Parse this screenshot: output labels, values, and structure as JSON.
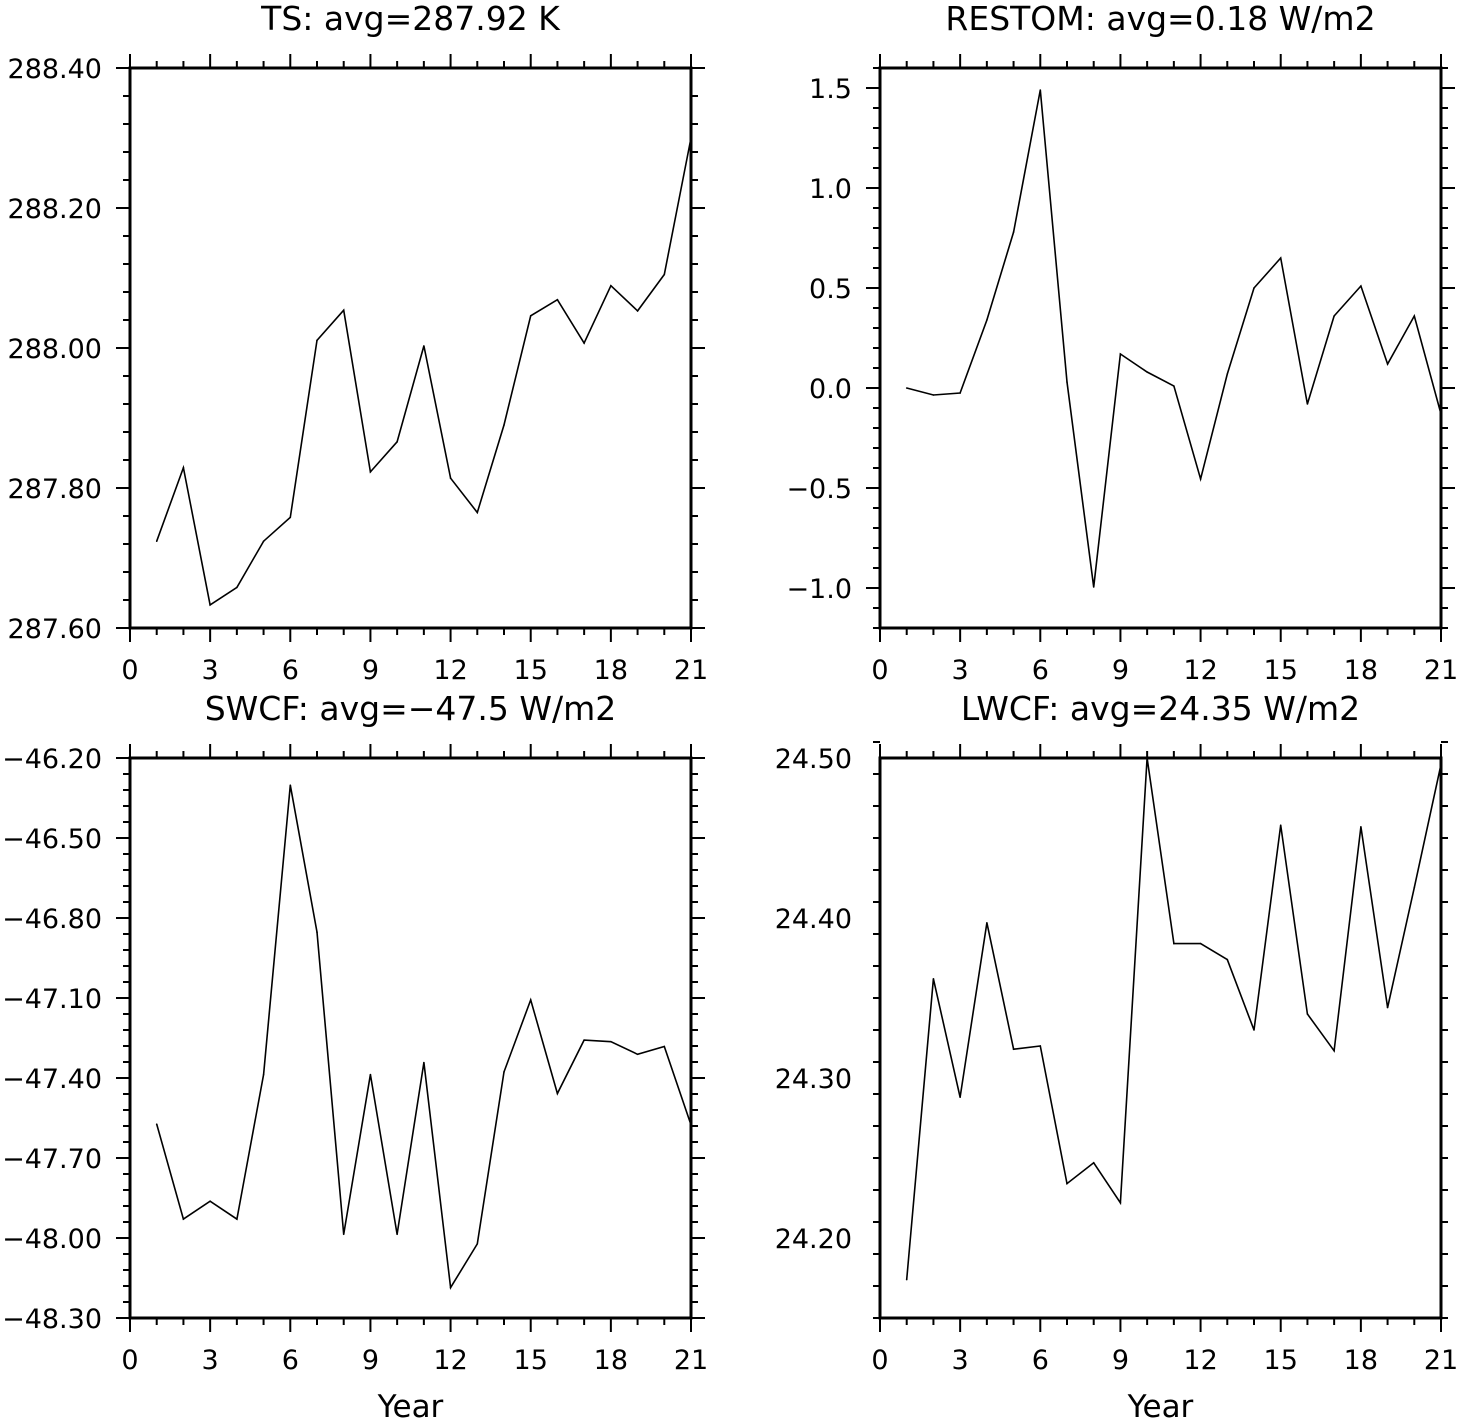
{
  "chart_data": [
    {
      "type": "line",
      "title": "TS: avg=287.92 K",
      "xlabel": "",
      "ylabel": "",
      "xlim": [
        0,
        21
      ],
      "ylim": [
        287.6,
        288.4
      ],
      "xticks": [
        0,
        3,
        6,
        9,
        12,
        15,
        18,
        21
      ],
      "xtick_labels": [
        "0",
        "3",
        "6",
        "9",
        "12",
        "15",
        "18",
        "21"
      ],
      "yticks": [
        287.6,
        287.8,
        288.0,
        288.2,
        288.4
      ],
      "ytick_labels": [
        "287.60",
        "287.80",
        "288.00",
        "288.20",
        "288.40"
      ],
      "y_minor_step": 0.04,
      "grid": false,
      "x": [
        1,
        2,
        3,
        4,
        5,
        6,
        7,
        8,
        9,
        10,
        11,
        12,
        13,
        14,
        15,
        16,
        17,
        18,
        19,
        20,
        21
      ],
      "values": [
        287.724,
        287.829,
        287.633,
        287.658,
        287.724,
        287.758,
        288.011,
        288.054,
        287.823,
        287.866,
        288.003,
        287.814,
        287.765,
        287.89,
        288.046,
        288.069,
        288.007,
        288.089,
        288.053,
        288.105,
        288.3
      ]
    },
    {
      "type": "line",
      "title": "RESTOM: avg=0.18 W/m2",
      "xlabel": "",
      "ylabel": "",
      "xlim": [
        0,
        21
      ],
      "ylim": [
        -1.2,
        1.6
      ],
      "xticks": [
        0,
        3,
        6,
        9,
        12,
        15,
        18,
        21
      ],
      "xtick_labels": [
        "0",
        "3",
        "6",
        "9",
        "12",
        "15",
        "18",
        "21"
      ],
      "yticks": [
        -1.0,
        -0.5,
        0.0,
        0.5,
        1.0,
        1.5
      ],
      "ytick_labels": [
        "−1.0",
        "−0.5",
        "0.0",
        "0.5",
        "1.0",
        "1.5"
      ],
      "y_minor_step": 0.1,
      "grid": false,
      "x": [
        1,
        2,
        3,
        4,
        5,
        6,
        7,
        8,
        9,
        10,
        11,
        12,
        13,
        14,
        15,
        16,
        17,
        18,
        19,
        20,
        21
      ],
      "values": [
        0.0,
        -0.035,
        -0.025,
        0.34,
        0.78,
        1.49,
        0.03,
        -0.995,
        0.17,
        0.08,
        0.01,
        -0.455,
        0.07,
        0.5,
        0.65,
        -0.08,
        0.36,
        0.51,
        0.12,
        0.36,
        -0.13
      ]
    },
    {
      "type": "line",
      "title": "SWCF: avg=−47.5 W/m2",
      "xlabel": "Year",
      "ylabel": "",
      "xlim": [
        0,
        21
      ],
      "ylim": [
        -48.3,
        -46.2
      ],
      "xticks": [
        0,
        3,
        6,
        9,
        12,
        15,
        18,
        21
      ],
      "xtick_labels": [
        "0",
        "3",
        "6",
        "9",
        "12",
        "15",
        "18",
        "21"
      ],
      "yticks": [
        -48.3,
        -48.0,
        -47.7,
        -47.4,
        -47.1,
        -46.8,
        -46.5,
        -46.2
      ],
      "ytick_labels": [
        "−48.30",
        "−48.00",
        "−47.70",
        "−47.40",
        "−47.10",
        "−46.80",
        "−46.50",
        "−46.20"
      ],
      "y_minor_step": 0.06,
      "grid": false,
      "x": [
        1,
        2,
        3,
        4,
        5,
        6,
        7,
        8,
        9,
        10,
        11,
        12,
        13,
        14,
        15,
        16,
        17,
        18,
        19,
        20,
        21
      ],
      "values": [
        -47.573,
        -47.929,
        -47.862,
        -47.929,
        -47.387,
        -46.302,
        -46.853,
        -47.986,
        -47.387,
        -47.986,
        -47.342,
        -48.186,
        -48.022,
        -47.377,
        -47.107,
        -47.458,
        -47.258,
        -47.264,
        -47.311,
        -47.282,
        -47.576
      ]
    },
    {
      "type": "line",
      "title": "LWCF: avg=24.35 W/m2",
      "xlabel": "Year",
      "ylabel": "",
      "xlim": [
        0,
        21
      ],
      "ylim": [
        24.15,
        24.5
      ],
      "xticks": [
        0,
        3,
        6,
        9,
        12,
        15,
        18,
        21
      ],
      "xtick_labels": [
        "0",
        "3",
        "6",
        "9",
        "12",
        "15",
        "18",
        "21"
      ],
      "yticks": [
        24.2,
        24.3,
        24.4,
        24.5
      ],
      "ytick_labels": [
        "24.20",
        "24.30",
        "24.40",
        "24.50"
      ],
      "y_minor_step": 0.02,
      "grid": false,
      "x": [
        1,
        2,
        3,
        4,
        5,
        6,
        7,
        8,
        9,
        10,
        11,
        12,
        13,
        14,
        15,
        16,
        17,
        18,
        19,
        20,
        21
      ],
      "values": [
        24.174,
        24.362,
        24.288,
        24.397,
        24.318,
        24.32,
        24.234,
        24.247,
        24.222,
        24.5,
        24.384,
        24.384,
        24.374,
        24.33,
        24.458,
        24.34,
        24.317,
        24.457,
        24.344,
        24.419,
        24.496
      ]
    }
  ]
}
